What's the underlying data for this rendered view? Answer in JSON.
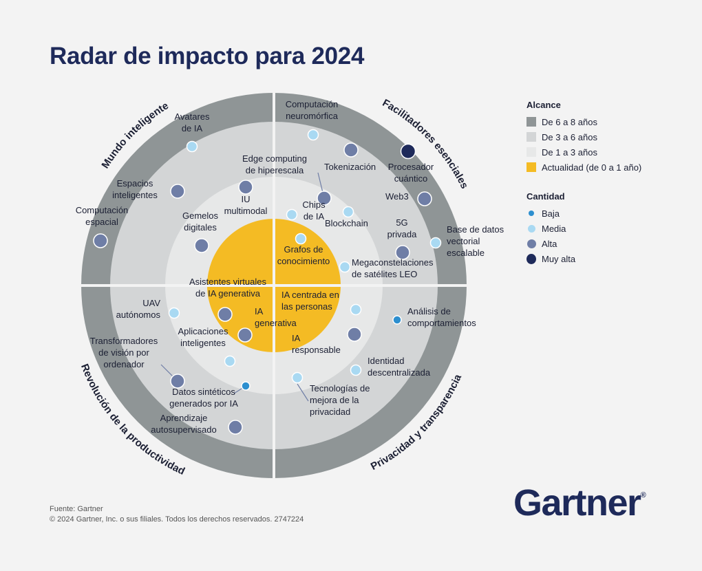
{
  "title": "Radar de impacto para 2024",
  "colors": {
    "background": "#f3f3f3",
    "ring_6_8": "#8f9596",
    "ring_3_6": "#d3d5d6",
    "ring_1_3": "#e7e8e8",
    "ring_now": "#f4bb24",
    "baja": "#2d8fcf",
    "media": "#a9d9f2",
    "alta": "#6f7ea6",
    "muy_alta": "#1e2a5a"
  },
  "legend": {
    "alcance_title": "Alcance",
    "alcance": [
      {
        "label": "De 6 a 8 años",
        "color": "#8f9596"
      },
      {
        "label": "De 3 a 6 años",
        "color": "#d3d5d6"
      },
      {
        "label": "De 1 a 3 años",
        "color": "#e7e8e8"
      },
      {
        "label": "Actualidad (de 0 a 1 año)",
        "color": "#f4bb24"
      }
    ],
    "cantidad_title": "Cantidad",
    "cantidad": [
      {
        "label": "Baja",
        "level": "baja"
      },
      {
        "label": "Media",
        "level": "media"
      },
      {
        "label": "Alta",
        "level": "alta"
      },
      {
        "label": "Muy alta",
        "level": "muy_alta"
      }
    ]
  },
  "quadrants": [
    "Mundo inteligente",
    "Facilitadores esenciales",
    "Revolución de la productividad",
    "Privacidad y transparencia"
  ],
  "technologies": [
    {
      "name": [
        "Avatares",
        "de IA"
      ],
      "level": "media"
    },
    {
      "name": [
        "Espacios",
        "inteligentes"
      ],
      "level": "alta"
    },
    {
      "name": [
        "Computación",
        "espacial"
      ],
      "level": "alta"
    },
    {
      "name": [
        "IU",
        "multimodal"
      ],
      "level": "alta"
    },
    {
      "name": [
        "Gemelos",
        "digitales"
      ],
      "level": "alta"
    },
    {
      "name": [
        "Computación",
        "neuromórfica"
      ],
      "level": "media"
    },
    {
      "name": [
        "Tokenización"
      ],
      "level": "alta"
    },
    {
      "name": [
        "Procesador",
        "cuántico"
      ],
      "level": "muy_alta"
    },
    {
      "name": [
        "Edge computing",
        "de hiperescala"
      ],
      "level": "alta"
    },
    {
      "name": [
        "Web3"
      ],
      "level": "alta"
    },
    {
      "name": [
        "Chips",
        "de IA"
      ],
      "level": "media"
    },
    {
      "name": [
        "Blockchain"
      ],
      "level": "media"
    },
    {
      "name": [
        "5G",
        "privada"
      ],
      "level": "alta"
    },
    {
      "name": [
        "Base de datos",
        "vectorial",
        "escalable"
      ],
      "level": "media"
    },
    {
      "name": [
        "Grafos de",
        "conocimiento"
      ],
      "level": "media"
    },
    {
      "name": [
        "Megaconstelaciones",
        "de satélites LEO"
      ],
      "level": "media"
    },
    {
      "name": [
        "Asistentes virtuales",
        "de IA generativa"
      ],
      "level": "alta"
    },
    {
      "name": [
        "IA",
        "generativa"
      ],
      "level": "alta"
    },
    {
      "name": [
        "UAV",
        "autónomos"
      ],
      "level": "media"
    },
    {
      "name": [
        "Aplicaciones",
        "inteligentes"
      ],
      "level": "media"
    },
    {
      "name": [
        "Transformadores",
        "de visión por",
        "ordenador"
      ],
      "level": "alta"
    },
    {
      "name": [
        "Datos sintéticos",
        "generados por IA"
      ],
      "level": "baja"
    },
    {
      "name": [
        "Aprendizaje",
        "autosupervisado"
      ],
      "level": "alta"
    },
    {
      "name": [
        "IA centrada en",
        "las personas"
      ],
      "level": "media"
    },
    {
      "name": [
        "IA",
        "responsable"
      ],
      "level": "alta"
    },
    {
      "name": [
        "Análisis de",
        "comportamientos"
      ],
      "level": "baja"
    },
    {
      "name": [
        "Identidad",
        "descentralizada"
      ],
      "level": "media"
    },
    {
      "name": [
        "Tecnologías de",
        "mejora de la",
        "privacidad"
      ],
      "level": "media"
    }
  ],
  "footer": {
    "source": "Fuente: Gartner",
    "copyright": "© 2024 Gartner, Inc. o sus filiales. Todos los derechos reservados. 2747224"
  },
  "brand": "Gartner",
  "brand_mark": "®"
}
